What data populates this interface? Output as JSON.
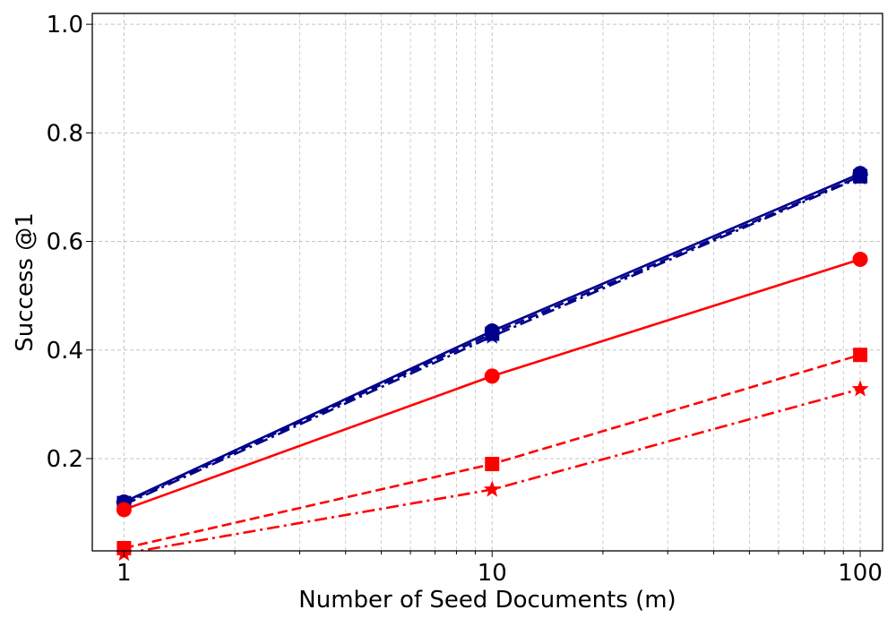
{
  "chart_data": {
    "type": "line",
    "xlabel": "Number of Seed Documents (m)",
    "ylabel": "Success @1",
    "xscale": "log",
    "xlim": [
      0.82,
      115
    ],
    "ylim": [
      0.03,
      1.02
    ],
    "grid": true,
    "x_ticks": [
      1,
      10,
      100
    ],
    "x_tick_labels": [
      "1",
      "10",
      "100"
    ],
    "y_ticks": [
      0.2,
      0.4,
      0.6,
      0.8,
      1.0
    ],
    "y_tick_labels": [
      "0.2",
      "0.4",
      "0.6",
      "0.8",
      "1.0"
    ],
    "x": [
      1,
      10,
      100
    ],
    "series": [
      {
        "color": "#00008b",
        "linestyle": "solid",
        "marker": "circle",
        "values": [
          0.12,
          0.435,
          0.725
        ]
      },
      {
        "color": "#00008b",
        "linestyle": "dashed",
        "marker": "square",
        "values": [
          0.118,
          0.43,
          0.72
        ]
      },
      {
        "color": "#00008b",
        "linestyle": "dashdot",
        "marker": "star",
        "values": [
          0.115,
          0.425,
          0.718
        ]
      },
      {
        "color": "#ff0000",
        "linestyle": "solid",
        "marker": "circle",
        "values": [
          0.106,
          0.352,
          0.567
        ]
      },
      {
        "color": "#ff0000",
        "linestyle": "dashed",
        "marker": "square",
        "values": [
          0.035,
          0.19,
          0.391
        ]
      },
      {
        "color": "#ff0000",
        "linestyle": "dashdot",
        "marker": "star",
        "values": [
          0.025,
          0.143,
          0.328
        ]
      }
    ]
  }
}
